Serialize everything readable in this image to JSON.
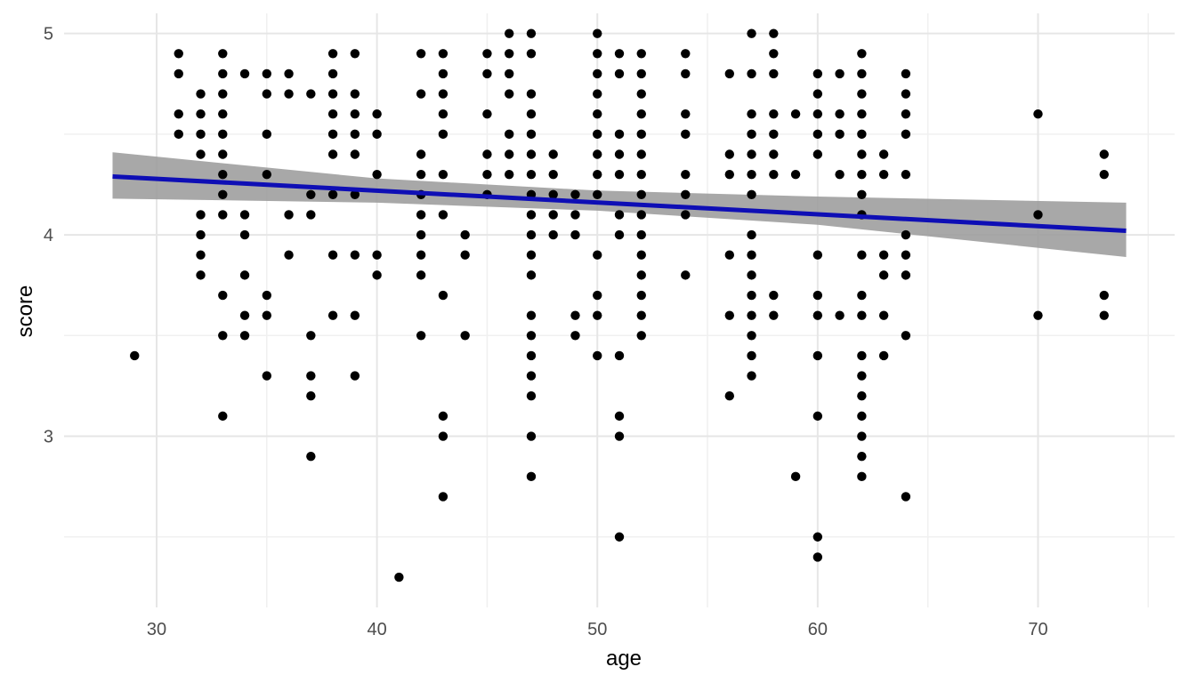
{
  "chart_data": {
    "type": "scatter",
    "title": "",
    "xlabel": "age",
    "ylabel": "score",
    "xlim": [
      25.8,
      76.2
    ],
    "ylim": [
      2.15,
      5.1
    ],
    "x_ticks": [
      30,
      40,
      50,
      60,
      70
    ],
    "y_ticks": [
      3,
      4,
      5
    ],
    "x_tick_labels": [
      "30",
      "40",
      "50",
      "60",
      "70"
    ],
    "y_tick_labels": [
      "3",
      "4",
      "5"
    ],
    "grid": true,
    "legend": "none",
    "colors": {
      "points": "#000000",
      "trend_line": "#0e0eb5",
      "confidence_band": "#999999",
      "grid_major": "#e6e6e6",
      "grid_minor": "#f0f0f0"
    },
    "trend": {
      "method": "linear",
      "x": [
        28,
        74
      ],
      "y": [
        4.29,
        4.02
      ],
      "ci_x": [
        28,
        40,
        50,
        60,
        74
      ],
      "ci_lower": [
        4.18,
        4.16,
        4.12,
        4.05,
        3.89
      ],
      "ci_upper": [
        4.41,
        4.28,
        4.22,
        4.19,
        4.16
      ]
    },
    "series": [
      {
        "points": [
          [
            29,
            3.4
          ],
          [
            31,
            4.9
          ],
          [
            31,
            4.8
          ],
          [
            31,
            4.6
          ],
          [
            31,
            4.5
          ],
          [
            32,
            4.7
          ],
          [
            32,
            4.6
          ],
          [
            32,
            4.5
          ],
          [
            32,
            4.4
          ],
          [
            32,
            4.1
          ],
          [
            32,
            4.0
          ],
          [
            32,
            3.9
          ],
          [
            32,
            3.8
          ],
          [
            33,
            4.9
          ],
          [
            33,
            4.8
          ],
          [
            33,
            4.7
          ],
          [
            33,
            4.6
          ],
          [
            33,
            4.5
          ],
          [
            33,
            4.4
          ],
          [
            33,
            4.3
          ],
          [
            33,
            4.2
          ],
          [
            33,
            4.1
          ],
          [
            33,
            3.7
          ],
          [
            33,
            3.5
          ],
          [
            33,
            3.1
          ],
          [
            34,
            4.8
          ],
          [
            34,
            4.1
          ],
          [
            34,
            4.0
          ],
          [
            34,
            3.8
          ],
          [
            34,
            3.6
          ],
          [
            34,
            3.5
          ],
          [
            35,
            4.8
          ],
          [
            35,
            4.7
          ],
          [
            35,
            4.5
          ],
          [
            35,
            4.3
          ],
          [
            35,
            3.7
          ],
          [
            35,
            3.6
          ],
          [
            35,
            3.3
          ],
          [
            36,
            4.8
          ],
          [
            36,
            4.7
          ],
          [
            36,
            4.1
          ],
          [
            36,
            3.9
          ],
          [
            37,
            4.7
          ],
          [
            37,
            4.2
          ],
          [
            37,
            4.1
          ],
          [
            37,
            3.5
          ],
          [
            37,
            3.3
          ],
          [
            37,
            3.2
          ],
          [
            37,
            2.9
          ],
          [
            38,
            4.9
          ],
          [
            38,
            4.8
          ],
          [
            38,
            4.7
          ],
          [
            38,
            4.6
          ],
          [
            38,
            4.5
          ],
          [
            38,
            4.4
          ],
          [
            38,
            4.2
          ],
          [
            38,
            3.9
          ],
          [
            38,
            3.6
          ],
          [
            39,
            4.9
          ],
          [
            39,
            4.7
          ],
          [
            39,
            4.6
          ],
          [
            39,
            4.5
          ],
          [
            39,
            4.4
          ],
          [
            39,
            4.2
          ],
          [
            39,
            3.9
          ],
          [
            39,
            3.6
          ],
          [
            39,
            3.3
          ],
          [
            40,
            4.6
          ],
          [
            40,
            4.5
          ],
          [
            40,
            4.3
          ],
          [
            40,
            3.9
          ],
          [
            40,
            3.8
          ],
          [
            41,
            2.3
          ],
          [
            42,
            4.9
          ],
          [
            42,
            4.7
          ],
          [
            42,
            4.4
          ],
          [
            42,
            4.3
          ],
          [
            42,
            4.2
          ],
          [
            42,
            4.1
          ],
          [
            42,
            4.0
          ],
          [
            42,
            3.9
          ],
          [
            42,
            3.8
          ],
          [
            42,
            3.5
          ],
          [
            43,
            4.9
          ],
          [
            43,
            4.8
          ],
          [
            43,
            4.7
          ],
          [
            43,
            4.6
          ],
          [
            43,
            4.5
          ],
          [
            43,
            4.3
          ],
          [
            43,
            4.1
          ],
          [
            43,
            3.7
          ],
          [
            43,
            3.1
          ],
          [
            43,
            3.0
          ],
          [
            43,
            2.7
          ],
          [
            44,
            4.0
          ],
          [
            44,
            3.9
          ],
          [
            44,
            3.5
          ],
          [
            45,
            4.9
          ],
          [
            45,
            4.8
          ],
          [
            45,
            4.6
          ],
          [
            45,
            4.4
          ],
          [
            45,
            4.3
          ],
          [
            45,
            4.2
          ],
          [
            46,
            5.0
          ],
          [
            46,
            4.9
          ],
          [
            46,
            4.8
          ],
          [
            46,
            4.7
          ],
          [
            46,
            4.5
          ],
          [
            46,
            4.4
          ],
          [
            46,
            4.3
          ],
          [
            47,
            5.0
          ],
          [
            47,
            4.9
          ],
          [
            47,
            4.7
          ],
          [
            47,
            4.6
          ],
          [
            47,
            4.5
          ],
          [
            47,
            4.4
          ],
          [
            47,
            4.3
          ],
          [
            47,
            4.2
          ],
          [
            47,
            4.1
          ],
          [
            47,
            4.0
          ],
          [
            47,
            3.9
          ],
          [
            47,
            3.8
          ],
          [
            47,
            3.6
          ],
          [
            47,
            3.5
          ],
          [
            47,
            3.4
          ],
          [
            47,
            3.3
          ],
          [
            47,
            3.2
          ],
          [
            47,
            3.0
          ],
          [
            47,
            2.8
          ],
          [
            48,
            4.4
          ],
          [
            48,
            4.3
          ],
          [
            48,
            4.2
          ],
          [
            48,
            4.1
          ],
          [
            48,
            4.0
          ],
          [
            49,
            4.2
          ],
          [
            49,
            4.1
          ],
          [
            49,
            4.0
          ],
          [
            49,
            3.6
          ],
          [
            49,
            3.5
          ],
          [
            50,
            5.0
          ],
          [
            50,
            4.9
          ],
          [
            50,
            4.8
          ],
          [
            50,
            4.7
          ],
          [
            50,
            4.6
          ],
          [
            50,
            4.5
          ],
          [
            50,
            4.4
          ],
          [
            50,
            4.3
          ],
          [
            50,
            4.2
          ],
          [
            50,
            3.9
          ],
          [
            50,
            3.7
          ],
          [
            50,
            3.6
          ],
          [
            50,
            3.4
          ],
          [
            51,
            4.9
          ],
          [
            51,
            4.8
          ],
          [
            51,
            4.5
          ],
          [
            51,
            4.4
          ],
          [
            51,
            4.3
          ],
          [
            51,
            4.1
          ],
          [
            51,
            4.0
          ],
          [
            51,
            3.4
          ],
          [
            51,
            3.1
          ],
          [
            51,
            3.0
          ],
          [
            51,
            2.5
          ],
          [
            52,
            4.9
          ],
          [
            52,
            4.8
          ],
          [
            52,
            4.7
          ],
          [
            52,
            4.6
          ],
          [
            52,
            4.5
          ],
          [
            52,
            4.4
          ],
          [
            52,
            4.3
          ],
          [
            52,
            4.2
          ],
          [
            52,
            4.1
          ],
          [
            52,
            4.0
          ],
          [
            52,
            3.9
          ],
          [
            52,
            3.8
          ],
          [
            52,
            3.7
          ],
          [
            52,
            3.6
          ],
          [
            52,
            3.5
          ],
          [
            54,
            4.9
          ],
          [
            54,
            4.8
          ],
          [
            54,
            4.6
          ],
          [
            54,
            4.5
          ],
          [
            54,
            4.3
          ],
          [
            54,
            4.2
          ],
          [
            54,
            4.1
          ],
          [
            54,
            3.8
          ],
          [
            56,
            4.8
          ],
          [
            56,
            4.4
          ],
          [
            56,
            4.3
          ],
          [
            56,
            3.9
          ],
          [
            56,
            3.6
          ],
          [
            56,
            3.2
          ],
          [
            57,
            5.0
          ],
          [
            57,
            4.8
          ],
          [
            57,
            4.6
          ],
          [
            57,
            4.5
          ],
          [
            57,
            4.4
          ],
          [
            57,
            4.3
          ],
          [
            57,
            4.2
          ],
          [
            57,
            4.0
          ],
          [
            57,
            3.9
          ],
          [
            57,
            3.8
          ],
          [
            57,
            3.7
          ],
          [
            57,
            3.6
          ],
          [
            57,
            3.5
          ],
          [
            57,
            3.4
          ],
          [
            57,
            3.3
          ],
          [
            58,
            5.0
          ],
          [
            58,
            4.9
          ],
          [
            58,
            4.8
          ],
          [
            58,
            4.6
          ],
          [
            58,
            4.5
          ],
          [
            58,
            4.4
          ],
          [
            58,
            4.3
          ],
          [
            58,
            3.7
          ],
          [
            58,
            3.6
          ],
          [
            59,
            4.6
          ],
          [
            59,
            4.3
          ],
          [
            59,
            2.8
          ],
          [
            60,
            4.8
          ],
          [
            60,
            4.7
          ],
          [
            60,
            4.6
          ],
          [
            60,
            4.5
          ],
          [
            60,
            4.4
          ],
          [
            60,
            3.9
          ],
          [
            60,
            3.7
          ],
          [
            60,
            3.6
          ],
          [
            60,
            3.4
          ],
          [
            60,
            3.1
          ],
          [
            60,
            2.5
          ],
          [
            60,
            2.4
          ],
          [
            61,
            4.8
          ],
          [
            61,
            4.6
          ],
          [
            61,
            4.5
          ],
          [
            61,
            4.3
          ],
          [
            61,
            3.6
          ],
          [
            62,
            4.9
          ],
          [
            62,
            4.8
          ],
          [
            62,
            4.7
          ],
          [
            62,
            4.6
          ],
          [
            62,
            4.5
          ],
          [
            62,
            4.4
          ],
          [
            62,
            4.3
          ],
          [
            62,
            4.2
          ],
          [
            62,
            4.1
          ],
          [
            62,
            3.9
          ],
          [
            62,
            3.7
          ],
          [
            62,
            3.6
          ],
          [
            62,
            3.4
          ],
          [
            62,
            3.3
          ],
          [
            62,
            3.2
          ],
          [
            62,
            3.1
          ],
          [
            62,
            3.0
          ],
          [
            62,
            2.9
          ],
          [
            62,
            2.8
          ],
          [
            63,
            4.4
          ],
          [
            63,
            4.3
          ],
          [
            63,
            3.9
          ],
          [
            63,
            3.8
          ],
          [
            63,
            3.6
          ],
          [
            63,
            3.4
          ],
          [
            64,
            4.8
          ],
          [
            64,
            4.7
          ],
          [
            64,
            4.6
          ],
          [
            64,
            4.5
          ],
          [
            64,
            4.3
          ],
          [
            64,
            4.0
          ],
          [
            64,
            3.9
          ],
          [
            64,
            3.8
          ],
          [
            64,
            3.5
          ],
          [
            64,
            2.7
          ],
          [
            70,
            4.6
          ],
          [
            70,
            4.1
          ],
          [
            70,
            3.6
          ],
          [
            73,
            4.4
          ],
          [
            73,
            4.3
          ],
          [
            73,
            3.7
          ],
          [
            73,
            3.6
          ]
        ]
      }
    ]
  }
}
